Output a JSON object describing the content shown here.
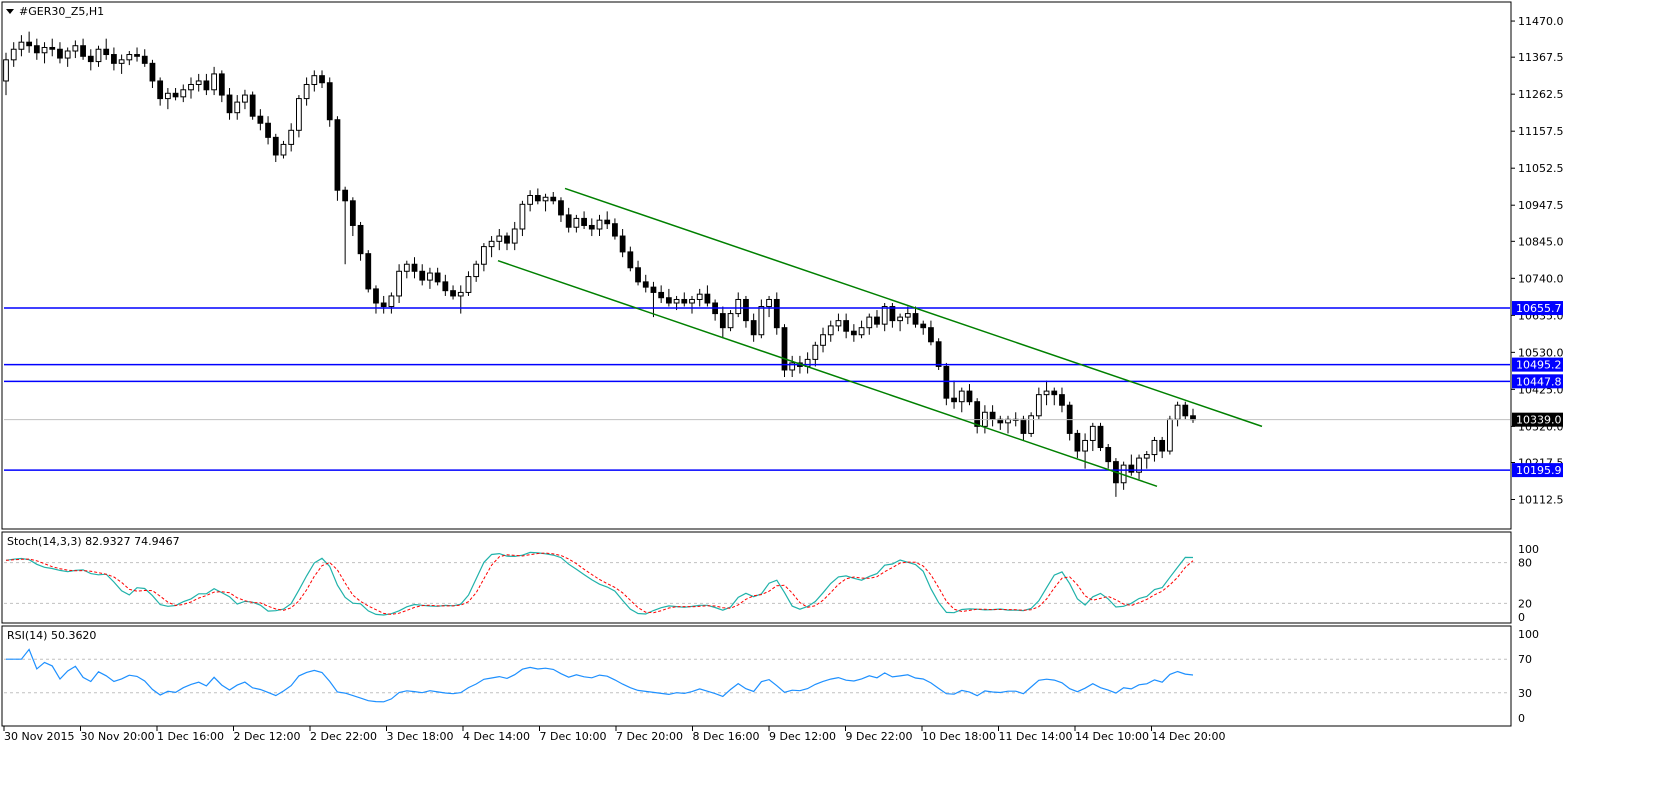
{
  "chart_title": "#GER30_Z5,H1",
  "price_axis_ticks": [
    "11470.0",
    "11367.5",
    "11262.5",
    "11157.5",
    "11052.5",
    "10947.5",
    "10845.0",
    "10740.0",
    "10635.0",
    "10530.0",
    "10425.0",
    "10320.0",
    "10217.5",
    "10112.5"
  ],
  "price_range": [
    10060,
    11490
  ],
  "current_price_label": "10339.0",
  "hlines": [
    {
      "label": "10655.7",
      "value": 10655.7
    },
    {
      "label": "10495.2",
      "value": 10495.2
    },
    {
      "label": "10447.8",
      "value": 10447.8
    },
    {
      "label": "10195.9",
      "value": 10195.9
    }
  ],
  "colors": {
    "hline": "#0000ff",
    "trend": "#008000",
    "candle_up": "#ffffff",
    "candle_down": "#000000",
    "stoch_main": "#20b2aa",
    "stoch_signal": "#ff0000",
    "rsi": "#1e90ff",
    "grid_dash": "#c0c0c0",
    "label_bg": "#0000ff",
    "label_text": "#ffffff",
    "current_bg": "#000000"
  },
  "time_axis_labels": [
    "30 Nov 2015",
    "30 Nov 20:00",
    "1 Dec 16:00",
    "2 Dec 12:00",
    "2 Dec 22:00",
    "3 Dec 18:00",
    "4 Dec 14:00",
    "7 Dec 10:00",
    "7 Dec 20:00",
    "8 Dec 16:00",
    "9 Dec 12:00",
    "9 Dec 22:00",
    "10 Dec 18:00",
    "11 Dec 14:00",
    "14 Dec 10:00",
    "14 Dec 20:00"
  ],
  "stoch": {
    "label": "Stoch(14,3,3) 82.9327 74.9467",
    "levels": [
      "100",
      "80",
      "20",
      "0"
    ]
  },
  "rsi": {
    "label": "RSI(14) 50.3620",
    "levels": [
      "100",
      "70",
      "30",
      "0"
    ]
  },
  "chart_data": {
    "type": "candlestick",
    "candles": [
      [
        11300,
        11380,
        11260,
        11360
      ],
      [
        11360,
        11410,
        11340,
        11390
      ],
      [
        11390,
        11430,
        11370,
        11410
      ],
      [
        11410,
        11440,
        11380,
        11400
      ],
      [
        11400,
        11420,
        11360,
        11380
      ],
      [
        11380,
        11410,
        11350,
        11395
      ],
      [
        11395,
        11420,
        11370,
        11390
      ],
      [
        11390,
        11410,
        11350,
        11365
      ],
      [
        11365,
        11395,
        11340,
        11385
      ],
      [
        11385,
        11415,
        11365,
        11400
      ],
      [
        11400,
        11420,
        11360,
        11370
      ],
      [
        11370,
        11390,
        11330,
        11355
      ],
      [
        11355,
        11400,
        11340,
        11390
      ],
      [
        11390,
        11420,
        11360,
        11375
      ],
      [
        11375,
        11395,
        11330,
        11350
      ],
      [
        11350,
        11375,
        11320,
        11360
      ],
      [
        11360,
        11385,
        11345,
        11375
      ],
      [
        11375,
        11395,
        11355,
        11370
      ],
      [
        11370,
        11390,
        11340,
        11350
      ],
      [
        11350,
        11360,
        11280,
        11300
      ],
      [
        11300,
        11310,
        11230,
        11250
      ],
      [
        11250,
        11280,
        11220,
        11265
      ],
      [
        11265,
        11280,
        11245,
        11255
      ],
      [
        11255,
        11290,
        11240,
        11275
      ],
      [
        11275,
        11310,
        11250,
        11290
      ],
      [
        11290,
        11320,
        11270,
        11300
      ],
      [
        11300,
        11320,
        11260,
        11275
      ],
      [
        11275,
        11340,
        11260,
        11320
      ],
      [
        11320,
        11330,
        11240,
        11260
      ],
      [
        11260,
        11280,
        11190,
        11210
      ],
      [
        11210,
        11260,
        11190,
        11240
      ],
      [
        11240,
        11275,
        11220,
        11260
      ],
      [
        11260,
        11270,
        11190,
        11200
      ],
      [
        11200,
        11220,
        11160,
        11180
      ],
      [
        11180,
        11200,
        11120,
        11140
      ],
      [
        11140,
        11150,
        11070,
        11090
      ],
      [
        11090,
        11130,
        11080,
        11120
      ],
      [
        11120,
        11180,
        11100,
        11160
      ],
      [
        11160,
        11260,
        11140,
        11250
      ],
      [
        11250,
        11310,
        11230,
        11290
      ],
      [
        11290,
        11330,
        11270,
        11315
      ],
      [
        11315,
        11330,
        11280,
        11295
      ],
      [
        11295,
        11310,
        11170,
        11190
      ],
      [
        11190,
        11200,
        10960,
        10990
      ],
      [
        10990,
        11000,
        10780,
        10960
      ],
      [
        10960,
        10970,
        10860,
        10890
      ],
      [
        10890,
        10900,
        10790,
        10810
      ],
      [
        10810,
        10820,
        10700,
        10710
      ],
      [
        10710,
        10720,
        10640,
        10670
      ],
      [
        10670,
        10690,
        10640,
        10660
      ],
      [
        10660,
        10700,
        10640,
        10690
      ],
      [
        10690,
        10780,
        10670,
        10760
      ],
      [
        10760,
        10790,
        10740,
        10780
      ],
      [
        10780,
        10800,
        10740,
        10760
      ],
      [
        10760,
        10780,
        10720,
        10735
      ],
      [
        10735,
        10770,
        10710,
        10755
      ],
      [
        10755,
        10770,
        10720,
        10730
      ],
      [
        10730,
        10750,
        10690,
        10705
      ],
      [
        10705,
        10720,
        10680,
        10690
      ],
      [
        10690,
        10720,
        10640,
        10700
      ],
      [
        10700,
        10760,
        10690,
        10745
      ],
      [
        10745,
        10790,
        10730,
        10780
      ],
      [
        10780,
        10840,
        10760,
        10830
      ],
      [
        10830,
        10860,
        10800,
        10845
      ],
      [
        10845,
        10880,
        10820,
        10860
      ],
      [
        10860,
        10870,
        10820,
        10840
      ],
      [
        10840,
        10900,
        10820,
        10880
      ],
      [
        10880,
        10960,
        10860,
        10950
      ],
      [
        10950,
        10990,
        10930,
        10975
      ],
      [
        10975,
        10995,
        10950,
        10960
      ],
      [
        10960,
        10980,
        10930,
        10970
      ],
      [
        10970,
        10985,
        10950,
        10960
      ],
      [
        10960,
        10970,
        10900,
        10920
      ],
      [
        10920,
        10940,
        10870,
        10885
      ],
      [
        10885,
        10920,
        10870,
        10910
      ],
      [
        10910,
        10930,
        10880,
        10890
      ],
      [
        10890,
        10910,
        10860,
        10880
      ],
      [
        10880,
        10920,
        10860,
        10905
      ],
      [
        10905,
        10930,
        10880,
        10895
      ],
      [
        10895,
        10910,
        10850,
        10860
      ],
      [
        10860,
        10880,
        10800,
        10815
      ],
      [
        10815,
        10830,
        10760,
        10770
      ],
      [
        10770,
        10790,
        10720,
        10730
      ],
      [
        10730,
        10750,
        10700,
        10715
      ],
      [
        10715,
        10730,
        10630,
        10700
      ],
      [
        10700,
        10720,
        10670,
        10685
      ],
      [
        10685,
        10710,
        10660,
        10670
      ],
      [
        10670,
        10690,
        10650,
        10680
      ],
      [
        10680,
        10700,
        10660,
        10670
      ],
      [
        10670,
        10690,
        10640,
        10680
      ],
      [
        10680,
        10710,
        10660,
        10695
      ],
      [
        10695,
        10720,
        10660,
        10670
      ],
      [
        10670,
        10680,
        10620,
        10640
      ],
      [
        10640,
        10660,
        10570,
        10600
      ],
      [
        10600,
        10650,
        10590,
        10640
      ],
      [
        10640,
        10700,
        10630,
        10680
      ],
      [
        10680,
        10690,
        10600,
        10620
      ],
      [
        10620,
        10640,
        10560,
        10580
      ],
      [
        10580,
        10680,
        10570,
        10660
      ],
      [
        10660,
        10690,
        10630,
        10680
      ],
      [
        10680,
        10700,
        10580,
        10600
      ],
      [
        10600,
        10610,
        10460,
        10480
      ],
      [
        10480,
        10520,
        10460,
        10500
      ],
      [
        10500,
        10520,
        10470,
        10490
      ],
      [
        10490,
        10530,
        10470,
        10510
      ],
      [
        10510,
        10560,
        10490,
        10550
      ],
      [
        10550,
        10600,
        10530,
        10580
      ],
      [
        10580,
        10620,
        10560,
        10605
      ],
      [
        10605,
        10640,
        10590,
        10620
      ],
      [
        10620,
        10640,
        10570,
        10590
      ],
      [
        10590,
        10610,
        10560,
        10580
      ],
      [
        10580,
        10620,
        10570,
        10600
      ],
      [
        10600,
        10640,
        10580,
        10630
      ],
      [
        10630,
        10650,
        10600,
        10610
      ],
      [
        10610,
        10670,
        10590,
        10660
      ],
      [
        10660,
        10670,
        10600,
        10620
      ],
      [
        10620,
        10640,
        10590,
        10630
      ],
      [
        10630,
        10660,
        10610,
        10640
      ],
      [
        10640,
        10660,
        10600,
        10610
      ],
      [
        10610,
        10620,
        10580,
        10600
      ],
      [
        10600,
        10620,
        10550,
        10560
      ],
      [
        10560,
        10570,
        10480,
        10490
      ],
      [
        10490,
        10500,
        10380,
        10400
      ],
      [
        10400,
        10450,
        10370,
        10390
      ],
      [
        10390,
        10430,
        10360,
        10420
      ],
      [
        10420,
        10440,
        10380,
        10390
      ],
      [
        10390,
        10400,
        10300,
        10320
      ],
      [
        10320,
        10380,
        10300,
        10360
      ],
      [
        10360,
        10380,
        10320,
        10340
      ],
      [
        10340,
        10350,
        10310,
        10330
      ],
      [
        10330,
        10350,
        10300,
        10340
      ],
      [
        10340,
        10360,
        10320,
        10340
      ],
      [
        10340,
        10350,
        10280,
        10300
      ],
      [
        10300,
        10360,
        10290,
        10350
      ],
      [
        10350,
        10430,
        10340,
        10410
      ],
      [
        10410,
        10450,
        10380,
        10420
      ],
      [
        10420,
        10430,
        10380,
        10410
      ],
      [
        10410,
        10430,
        10360,
        10380
      ],
      [
        10380,
        10390,
        10280,
        10300
      ],
      [
        10300,
        10310,
        10230,
        10250
      ],
      [
        10250,
        10300,
        10200,
        10280
      ],
      [
        10280,
        10330,
        10250,
        10320
      ],
      [
        10320,
        10330,
        10250,
        10260
      ],
      [
        10260,
        10270,
        10200,
        10220
      ],
      [
        10220,
        10230,
        10120,
        10160
      ],
      [
        10160,
        10220,
        10140,
        10210
      ],
      [
        10210,
        10240,
        10180,
        10190
      ],
      [
        10190,
        10240,
        10170,
        10230
      ],
      [
        10230,
        10250,
        10200,
        10240
      ],
      [
        10240,
        10290,
        10220,
        10280
      ],
      [
        10280,
        10290,
        10230,
        10250
      ],
      [
        10250,
        10350,
        10240,
        10340
      ],
      [
        10340,
        10390,
        10320,
        10380
      ],
      [
        10380,
        10390,
        10340,
        10350
      ],
      [
        10350,
        10370,
        10330,
        10339
      ]
    ],
    "trend_lines": [
      {
        "from": [
          0.565,
          10995
        ],
        "to": [
          1.262,
          10320
        ]
      },
      {
        "from": [
          0.498,
          10790
        ],
        "to": [
          1.157,
          10150
        ]
      }
    ]
  }
}
